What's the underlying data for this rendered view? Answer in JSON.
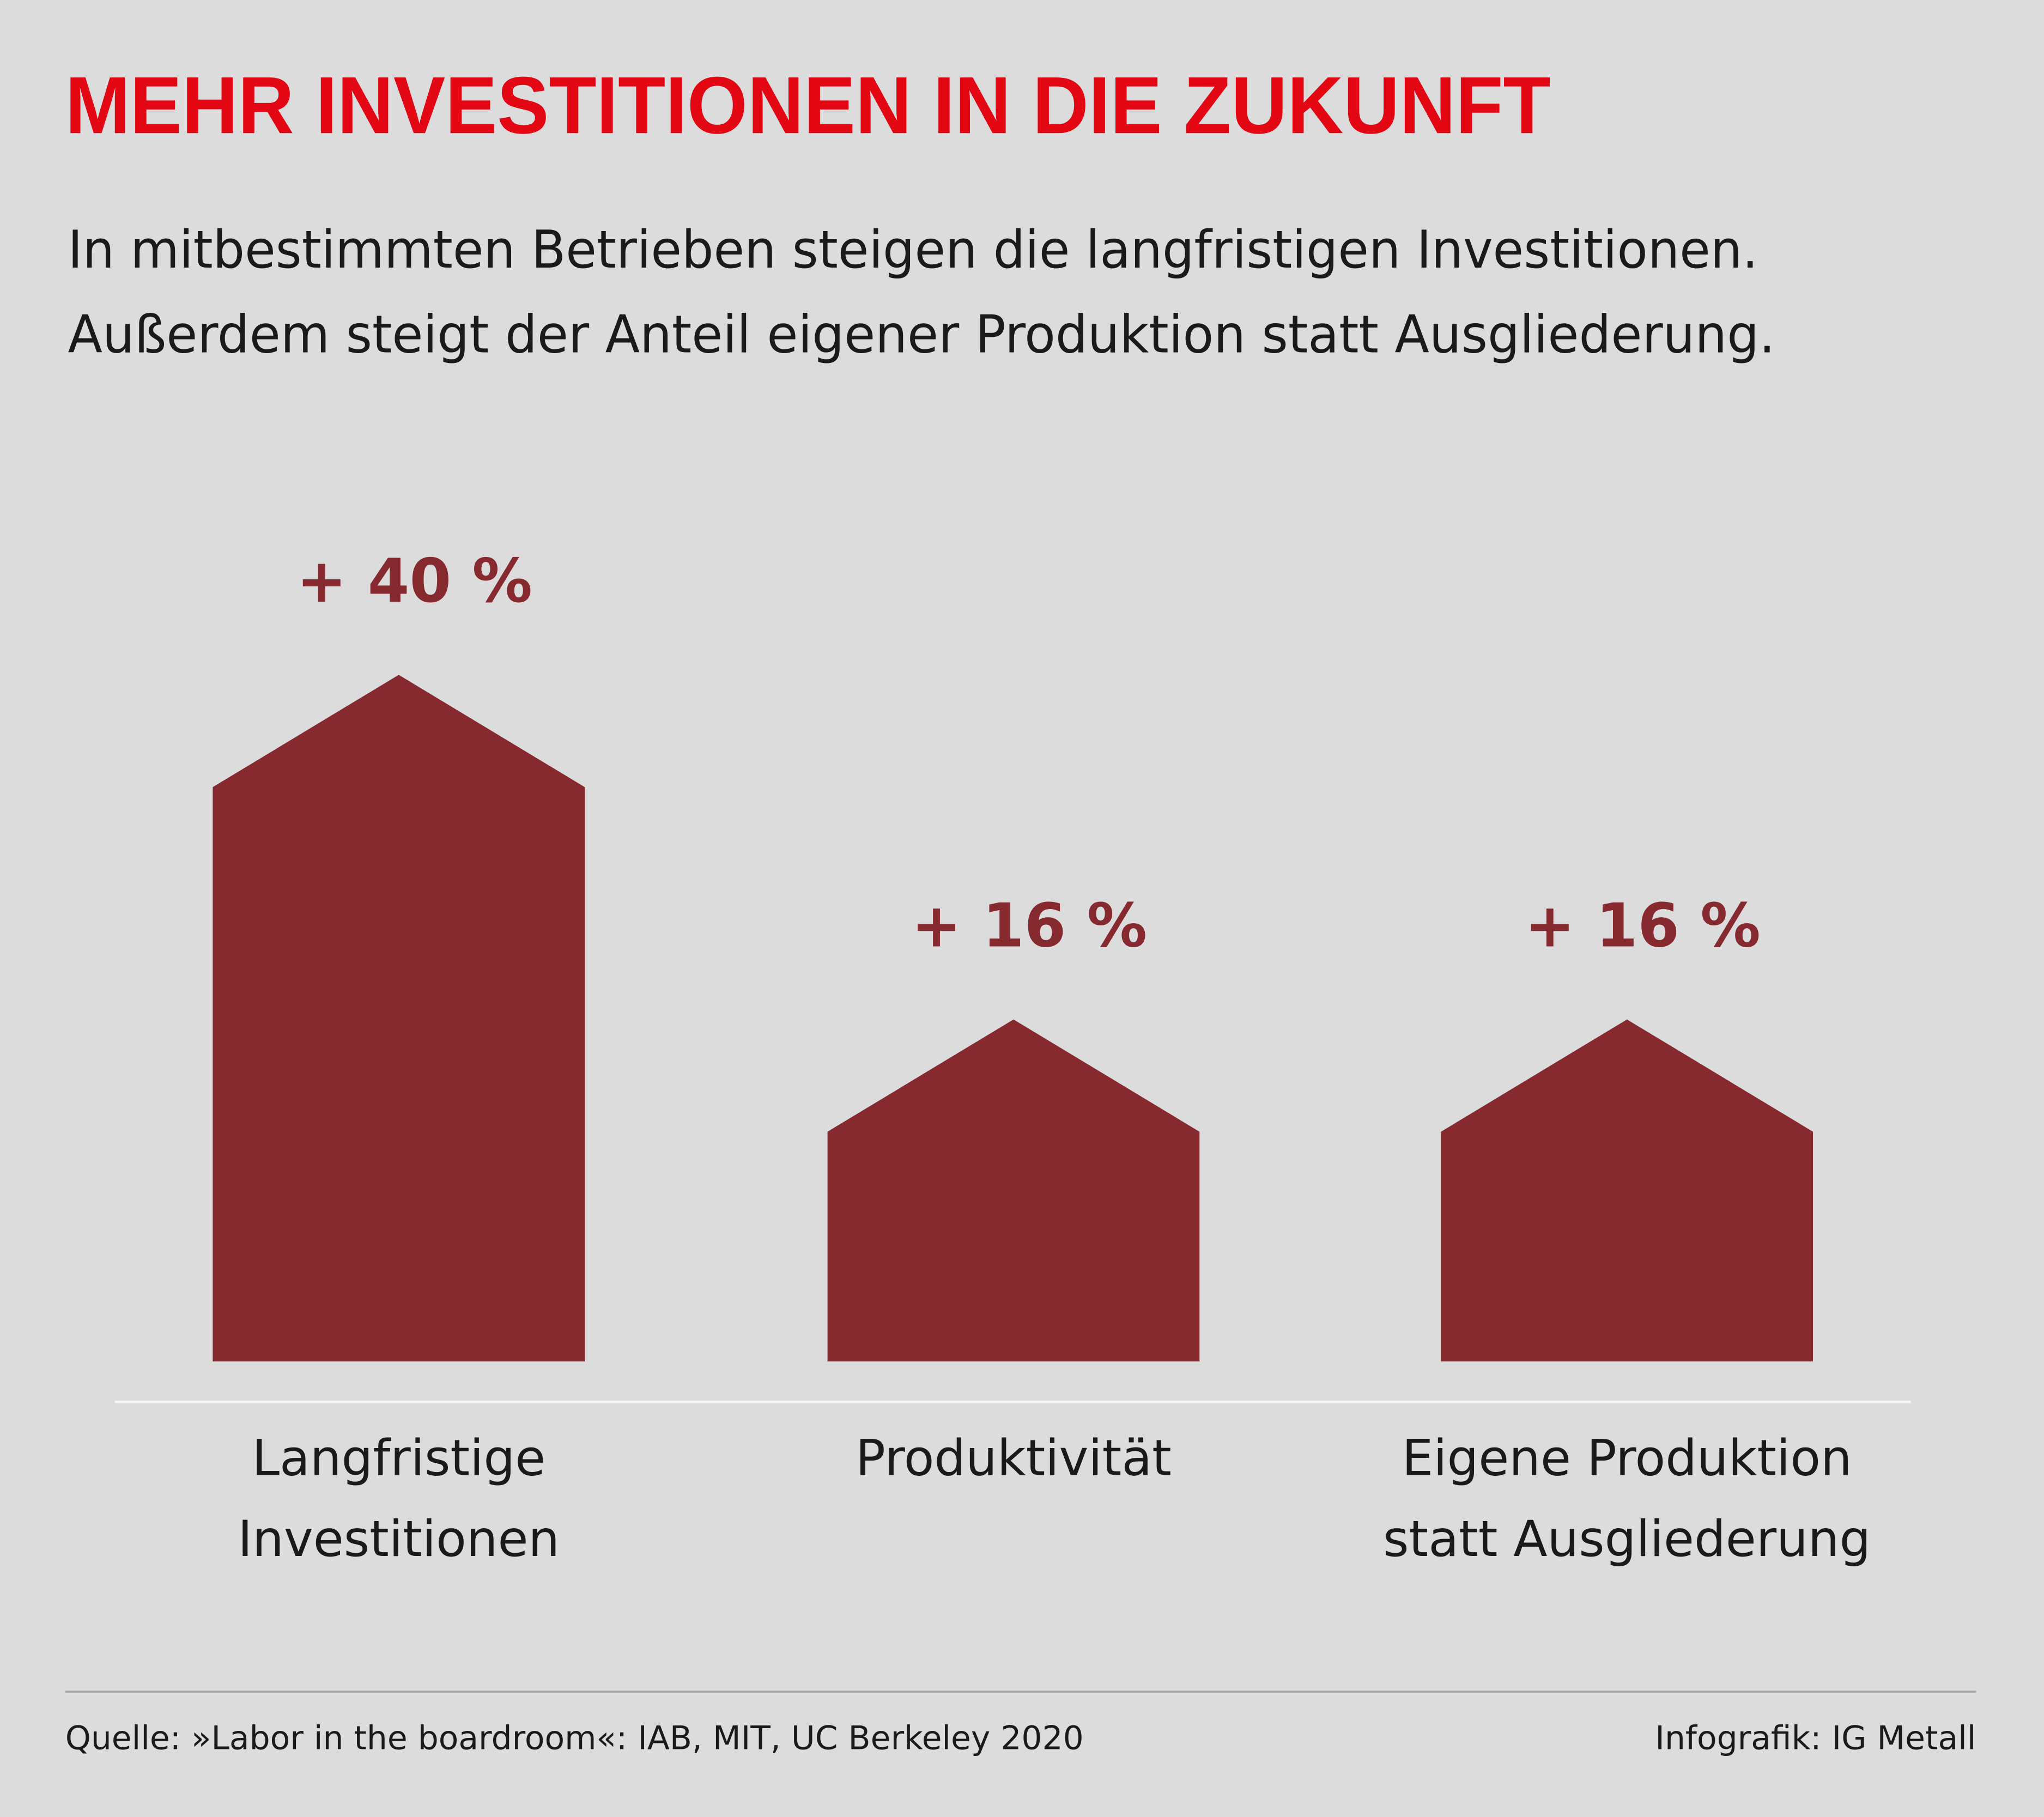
{
  "chart_data": {
    "type": "bar",
    "title": "MEHR INVESTITIONEN IN DIE ZUKUNFT",
    "subtitle": [
      "In mitbestimmten Betrieben steigen die langfristigen Investitionen.",
      "Außerdem steigt der Anteil eigener Produktion statt Ausgliederung."
    ],
    "categories": [
      "Langfristige\nInvestitionen",
      "Produktivität",
      "Eigene Produktion\nstatt Ausgliederung"
    ],
    "values": [
      40,
      16,
      16
    ],
    "value_labels": [
      "+ 40 %",
      "+ 16 %",
      "+ 16 %"
    ],
    "color": "#862a30",
    "source": "Quelle: »Labor in the boardroom«: IAB, MIT, UC Berkeley 2020",
    "credit": "Infografik: IG Metall"
  }
}
